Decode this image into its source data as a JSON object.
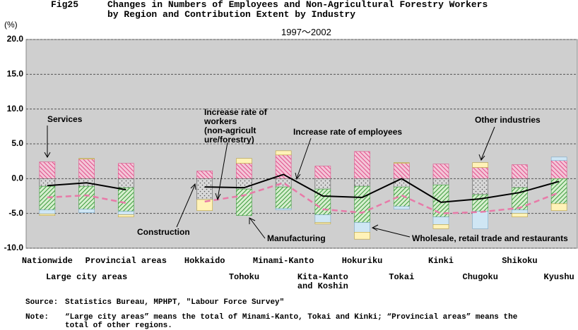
{
  "chart_data": {
    "type": "bar",
    "figure_label": "Fig25",
    "title": "Changes in Numbers of Employees and Non-Agricultural Forestry Workers\nby Region and Contribution Extent by Industry",
    "subtitle": "1997～2002",
    "y_unit": "(%)",
    "categories": [
      "Nationwide",
      "Large city areas",
      "Provincial areas",
      null,
      "Hokkaido",
      "Tohoku",
      "Minami-Kanto",
      "Kita-Kanto\nand Koshin",
      "Hokuriku",
      "Tokai",
      "Kinki",
      "Chugoku",
      "Shikoku",
      "Kyushu"
    ],
    "ylim": [
      -10,
      20
    ],
    "yticks": [
      {
        "value": 20,
        "label": "20.0"
      },
      {
        "value": 15,
        "label": "15.0"
      },
      {
        "value": 10,
        "label": "10.0"
      },
      {
        "value": 5,
        "label": "5.0"
      },
      {
        "value": 0,
        "label": "0.0"
      },
      {
        "value": -5,
        "label": "-5.0"
      },
      {
        "value": -10,
        "label": "-10.0"
      }
    ],
    "grid": true,
    "background": "#cfcfcf",
    "series": [
      {
        "name": "Services",
        "type": "bar",
        "color": "#e0508a",
        "fill": "#f4c6d8",
        "pattern": "hatch-right",
        "values": [
          2.4,
          2.8,
          2.2,
          null,
          1.1,
          2.2,
          3.4,
          1.8,
          3.9,
          2.2,
          2.1,
          1.6,
          2.0,
          2.6
        ]
      },
      {
        "name": "Construction",
        "type": "bar",
        "color": "#555555",
        "fill": "#d8d8d8",
        "pattern": "dots",
        "values": [
          -1.1,
          -1.1,
          -1.3,
          null,
          -3.0,
          -1.5,
          -1.2,
          -1.5,
          -1.1,
          -1.2,
          -0.9,
          -2.3,
          -1.3,
          0
        ]
      },
      {
        "name": "Manufacturing",
        "type": "bar",
        "color": "#3c9a3c",
        "fill": "#d7efcf",
        "pattern": "hatch-left",
        "values": [
          -3.4,
          -3.3,
          -3.4,
          null,
          0,
          -3.8,
          -3.1,
          -3.7,
          -5.2,
          -2.8,
          -4.6,
          -2.4,
          -3.2,
          -3.6
        ]
      },
      {
        "name": "Wholesale, retail trade and restaurants",
        "type": "bar",
        "color": "#7aa8c8",
        "fill": "#cfe6f4",
        "pattern": "none",
        "values": [
          -0.6,
          -0.5,
          -0.5,
          null,
          0,
          0,
          -0.2,
          -1.1,
          -1.4,
          -0.4,
          -1.1,
          -2.5,
          -0.5,
          0.5
        ]
      },
      {
        "name": "Other industries",
        "type": "bar",
        "color": "#b8a040",
        "fill": "#fff2b8",
        "pattern": "none",
        "values": [
          -0.2,
          0.1,
          -0.3,
          null,
          -1.6,
          0.7,
          0.6,
          -0.2,
          -1.0,
          0.1,
          -0.6,
          0.7,
          -0.5,
          -1.0
        ]
      },
      {
        "name": "Increase rate of employees",
        "type": "line",
        "color": "#000000",
        "dash": false,
        "values": [
          -1.0,
          -0.6,
          -1.6,
          null,
          -1.2,
          -1.3,
          0.6,
          -2.5,
          -2.7,
          0.0,
          -3.4,
          -2.9,
          -2.0,
          -0.4
        ]
      },
      {
        "name": "Increase rate of\nworkers\n(non-agricult\nure/forestry)",
        "type": "line",
        "color": "#e87aa8",
        "dash": true,
        "values": [
          -2.7,
          -2.4,
          -3.5,
          null,
          -3.3,
          -2.4,
          -0.6,
          -4.4,
          -4.9,
          -2.4,
          -5.0,
          -4.8,
          -4.2,
          -2.0
        ]
      }
    ],
    "source_label": "Source:",
    "source": "Statistics Bureau, MPHPT, \"Labour Force Survey\"",
    "note_label": "Note:",
    "note": "“Large city areas” means the total of Minami-Kanto, Tokai and Kinki; “Provincial areas” means the\ntotal of other regions."
  }
}
